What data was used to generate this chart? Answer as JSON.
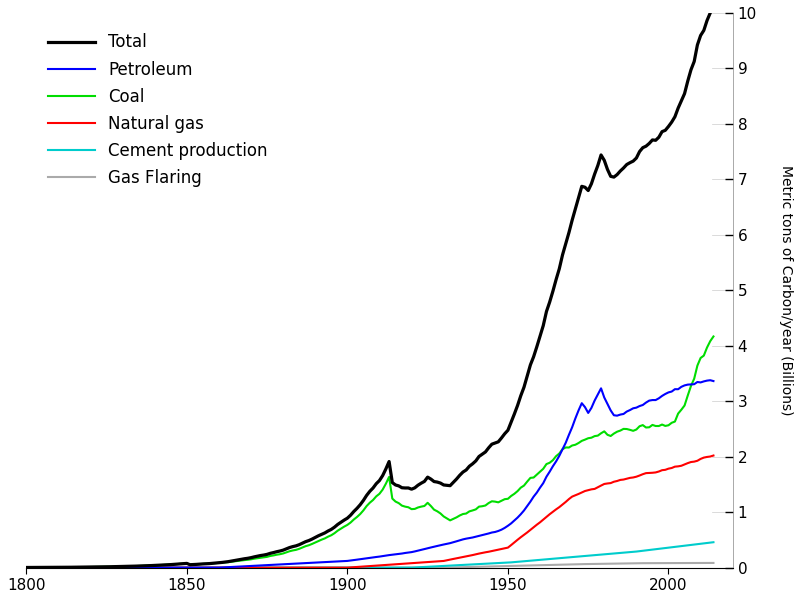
{
  "title": "",
  "ylabel": "Metric tons of Carbon/year (Billions)",
  "xlabel": "",
  "xlim": [
    1800,
    2020
  ],
  "ylim": [
    0,
    10
  ],
  "yticks": [
    0,
    1,
    2,
    3,
    4,
    5,
    6,
    7,
    8,
    9,
    10
  ],
  "xticks": [
    1800,
    1850,
    1900,
    1950,
    2000
  ],
  "legend_labels": [
    "Total",
    "Petroleum",
    "Coal",
    "Natural gas",
    "Cement production",
    "Gas Flaring"
  ],
  "legend_colors": [
    "#000000",
    "#0000ff",
    "#00dd00",
    "#ff0000",
    "#00cccc",
    "#aaaaaa"
  ],
  "line_width": 1.5,
  "figsize": [
    8.0,
    6.0
  ],
  "dpi": 100
}
